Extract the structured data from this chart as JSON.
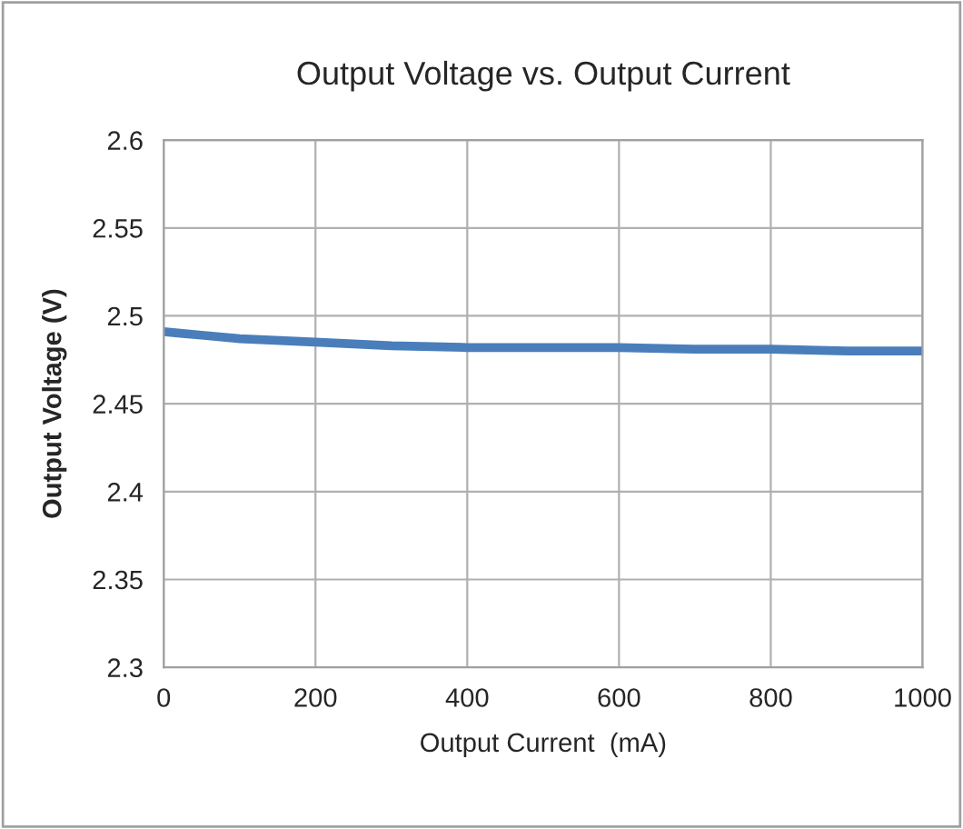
{
  "chart_data": {
    "type": "line",
    "title": "Output Voltage vs. Output Current",
    "xlabel": "Output Current  (mA)",
    "ylabel": "Output Voltage (V)",
    "x": [
      0,
      25,
      50,
      100,
      200,
      300,
      400,
      500,
      600,
      700,
      800,
      900,
      1000
    ],
    "series": [
      {
        "color": "#4a7ebb",
        "values": [
          2.491,
          2.49,
          2.489,
          2.487,
          2.485,
          2.483,
          2.482,
          2.482,
          2.482,
          2.481,
          2.481,
          2.48,
          2.48
        ]
      }
    ],
    "xlim": [
      0,
      1000
    ],
    "xticks": [
      0,
      200,
      400,
      600,
      800,
      1000
    ],
    "ylim": [
      2.3,
      2.6
    ],
    "yticks": [
      {
        "value": 2.3,
        "label": "2.3"
      },
      {
        "value": 2.35,
        "label": "2.35"
      },
      {
        "value": 2.4,
        "label": "2.4"
      },
      {
        "value": 2.45,
        "label": "2.45"
      },
      {
        "value": 2.5,
        "label": "2.5"
      },
      {
        "value": 2.55,
        "label": "2.55"
      },
      {
        "value": 2.6,
        "label": "2.6"
      }
    ],
    "grid": true,
    "marker": "none",
    "line_style": "solid"
  }
}
